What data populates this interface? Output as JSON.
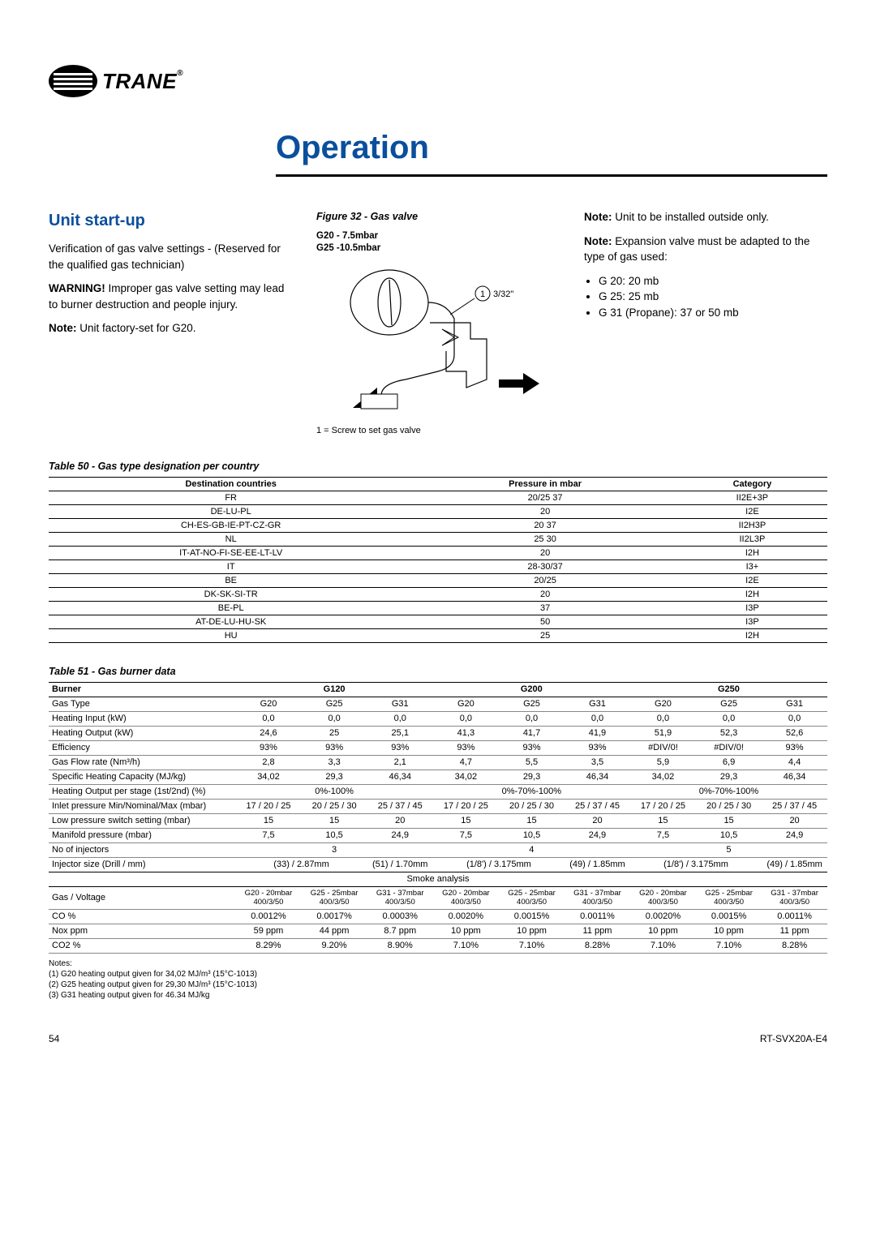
{
  "logo": {
    "brand": "TRANE",
    "reg": "®"
  },
  "page_title": "Operation",
  "left": {
    "h2": "Unit start-up",
    "p1": "Verification of gas valve settings - (Reserved for the qualified gas technician)",
    "p2a": "WARNING!",
    "p2b": " Improper gas valve setting may lead to burner destruction and people injury.",
    "p3a": "Note:",
    "p3b": " Unit factory-set for G20."
  },
  "figure": {
    "title": "Figure 32 - Gas valve",
    "sub1": "G20 - 7.5mbar",
    "sub2": "G25 -10.5mbar",
    "label_num": "1",
    "label_txt": "3/32\"",
    "caption": "1 = Screw to set gas valve"
  },
  "right": {
    "n1a": "Note:",
    "n1b": " Unit to be installed outside only.",
    "n2a": "Note:",
    "n2b": " Expansion valve must be adapted to the type of gas used:",
    "bullets": [
      "G 20: 20 mb",
      "G 25: 25 mb",
      "G 31 (Propane): 37 or 50 mb"
    ]
  },
  "t50": {
    "title": "Table 50 - Gas type designation per country",
    "headers": [
      "Destination countries",
      "Pressure in mbar",
      "Category"
    ],
    "rows": [
      [
        "FR",
        "20/25  37",
        "II2E+3P"
      ],
      [
        "DE-LU-PL",
        "20",
        "I2E"
      ],
      [
        "CH-ES-GB-IE-PT-CZ-GR",
        "20  37",
        "II2H3P"
      ],
      [
        "NL",
        "25  30",
        "II2L3P"
      ],
      [
        "IT-AT-NO-FI-SE-EE-LT-LV",
        "20",
        "I2H"
      ],
      [
        "IT",
        "28-30/37",
        "I3+"
      ],
      [
        "BE",
        "20/25",
        "I2E"
      ],
      [
        "DK-SK-SI-TR",
        "20",
        "I2H"
      ],
      [
        "BE-PL",
        "37",
        "I3P"
      ],
      [
        "AT-DE-LU-HU-SK",
        "50",
        "I3P"
      ],
      [
        "HU",
        "25",
        "I2H"
      ]
    ]
  },
  "t51": {
    "title": "Table 51 - Gas burner data",
    "burner_label": "Burner",
    "groups": [
      "G120",
      "G200",
      "G250"
    ],
    "rows": [
      {
        "label": "Gas Type",
        "v": [
          "G20",
          "G25",
          "G31",
          "G20",
          "G25",
          "G31",
          "G20",
          "G25",
          "G31"
        ]
      },
      {
        "label": "Heating Input (kW)",
        "v": [
          "0,0",
          "0,0",
          "0,0",
          "0,0",
          "0,0",
          "0,0",
          "0,0",
          "0,0",
          "0,0"
        ]
      },
      {
        "label": "Heating Output (kW)",
        "v": [
          "24,6",
          "25",
          "25,1",
          "41,3",
          "41,7",
          "41,9",
          "51,9",
          "52,3",
          "52,6"
        ]
      },
      {
        "label": "Efficiency",
        "v": [
          "93%",
          "93%",
          "93%",
          "93%",
          "93%",
          "93%",
          "#DIV/0!",
          "#DIV/0!",
          "93%"
        ]
      },
      {
        "label": "Gas Flow rate (Nm³/h)",
        "v": [
          "2,8",
          "3,3",
          "2,1",
          "4,7",
          "5,5",
          "3,5",
          "5,9",
          "6,9",
          "4,4"
        ]
      },
      {
        "label": "Specific Heating Capacity (MJ/kg)",
        "v": [
          "34,02",
          "29,3",
          "46,34",
          "34,02",
          "29,3",
          "46,34",
          "34,02",
          "29,3",
          "46,34"
        ]
      }
    ],
    "stage": {
      "label": "Heating Output per stage (1st/2nd) (%)",
      "v": [
        "0%-100%",
        "0%-70%-100%",
        "0%-70%-100%"
      ]
    },
    "rows2": [
      {
        "label": "Inlet pressure Min/Nominal/Max (mbar)",
        "v": [
          "17 / 20 / 25",
          "20 / 25 / 30",
          "25 / 37 / 45",
          "17 / 20 / 25",
          "20 / 25 / 30",
          "25 / 37 / 45",
          "17 / 20 / 25",
          "20 / 25 / 30",
          "25 / 37 / 45"
        ]
      },
      {
        "label": "Low pressure switch setting (mbar)",
        "v": [
          "15",
          "15",
          "20",
          "15",
          "15",
          "20",
          "15",
          "15",
          "20"
        ]
      },
      {
        "label": "Manifold pressure (mbar)",
        "v": [
          "7,5",
          "10,5",
          "24,9",
          "7,5",
          "10,5",
          "24,9",
          "7,5",
          "10,5",
          "24,9"
        ]
      }
    ],
    "inj_count": {
      "label": "No of injectors",
      "v": [
        "3",
        "4",
        "5"
      ]
    },
    "inj_size": {
      "label": "Injector size (Drill / mm)",
      "v": [
        "(33) / 2.87mm",
        "(51) / 1.70mm",
        "(1/8') / 3.175mm",
        "(49) / 1.85mm",
        "(1/8') / 3.175mm",
        "(49) / 1.85mm"
      ]
    },
    "smoke_title": "Smoke analysis",
    "gas_voltage_label": "Gas / Voltage",
    "gas_voltage": [
      "G20 - 20mbar 400/3/50",
      "G25 - 25mbar 400/3/50",
      "G31 - 37mbar 400/3/50",
      "G20 - 20mbar 400/3/50",
      "G25 - 25mbar 400/3/50",
      "G31 - 37mbar 400/3/50",
      "G20 - 20mbar 400/3/50",
      "G25 - 25mbar 400/3/50",
      "G31 - 37mbar 400/3/50"
    ],
    "smoke_rows": [
      {
        "label": "CO %",
        "v": [
          "0.0012%",
          "0.0017%",
          "0.0003%",
          "0.0020%",
          "0.0015%",
          "0.0011%",
          "0.0020%",
          "0.0015%",
          "0.0011%"
        ]
      },
      {
        "label": "Nox ppm",
        "v": [
          "59 ppm",
          "44 ppm",
          "8.7 ppm",
          "10 ppm",
          "10 ppm",
          "11 ppm",
          "10 ppm",
          "10 ppm",
          "11 ppm"
        ]
      },
      {
        "label": "CO2 %",
        "v": [
          "8.29%",
          "9.20%",
          "8.90%",
          "7.10%",
          "7.10%",
          "8.28%",
          "7.10%",
          "7.10%",
          "8.28%"
        ]
      }
    ]
  },
  "notes": {
    "h": "Notes:",
    "items": [
      "(1) G20 heating output given for 34,02 MJ/m³ (15°C-1013)",
      "(2) G25 heating output given for 29,30 MJ/m³ (15°C-1013)",
      "(3) G31 heating output given for 46.34 MJ/kg"
    ]
  },
  "footer": {
    "page": "54",
    "doc": "RT-SVX20A-E4"
  }
}
